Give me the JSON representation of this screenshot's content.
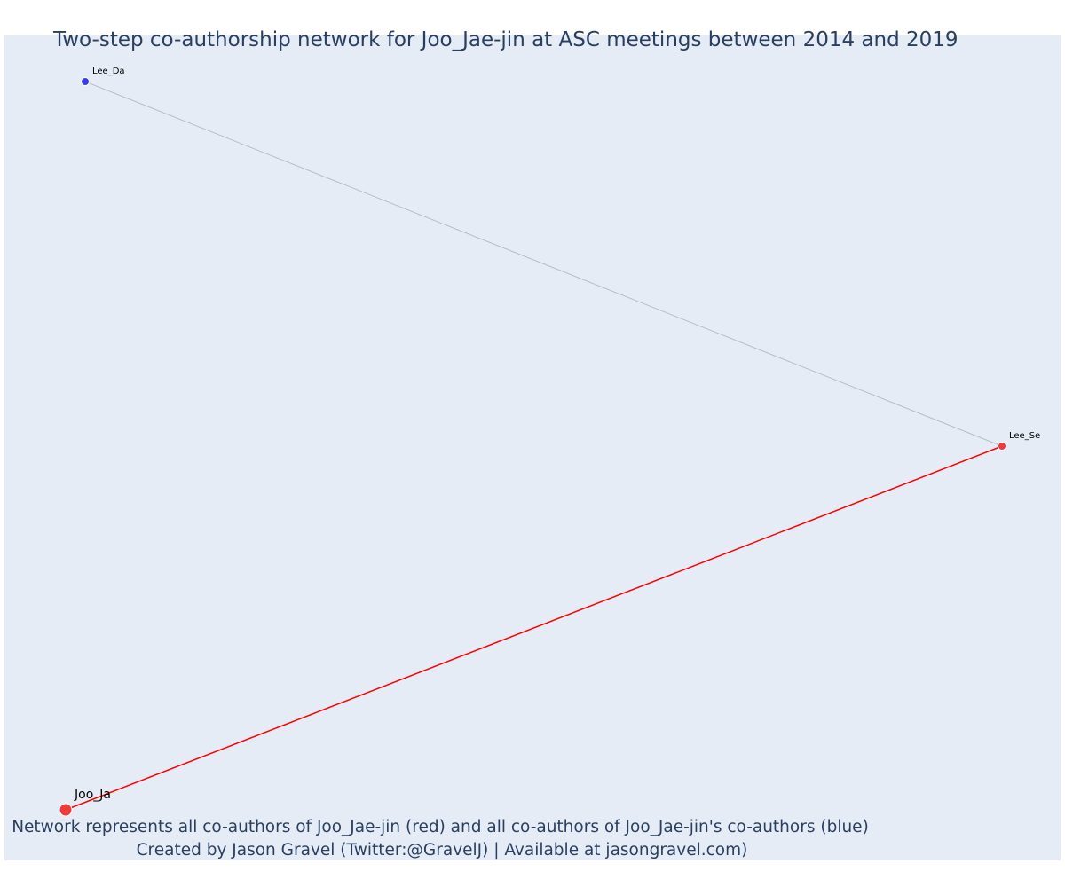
{
  "title": "Two-step co-authorship network for Joo_Jae-jin at ASC meetings between 2014 and 2019",
  "caption": {
    "line1": "Network represents all co-authors of Joo_Jae-jin (red) and all co-authors of Joo_Jae-jin's co-authors (blue)",
    "line2": "Created by Jason Gravel (Twitter:@GravelJ) | Available at jasongravel.com)"
  },
  "colors": {
    "plot_background": "#e5ecf6",
    "focal_author": "#ef3a3a",
    "direct_coauthor": "#ef3a3a",
    "second_step_coauthor": "#3a3aef",
    "direct_edge": "#ff0000",
    "second_step_edge": "#b8bccb"
  },
  "nodes": [
    {
      "id": "lee_da",
      "label": "Lee_Da",
      "group": "second_step_coauthor"
    },
    {
      "id": "lee_se",
      "label": "Lee_Se",
      "group": "direct_coauthor"
    },
    {
      "id": "joo_ja",
      "label": "Joo_Ja",
      "group": "focal_author"
    }
  ],
  "edges": [
    {
      "from": "lee_da",
      "to": "lee_se",
      "type": "second_step"
    },
    {
      "from": "lee_se",
      "to": "joo_ja",
      "type": "direct"
    }
  ]
}
